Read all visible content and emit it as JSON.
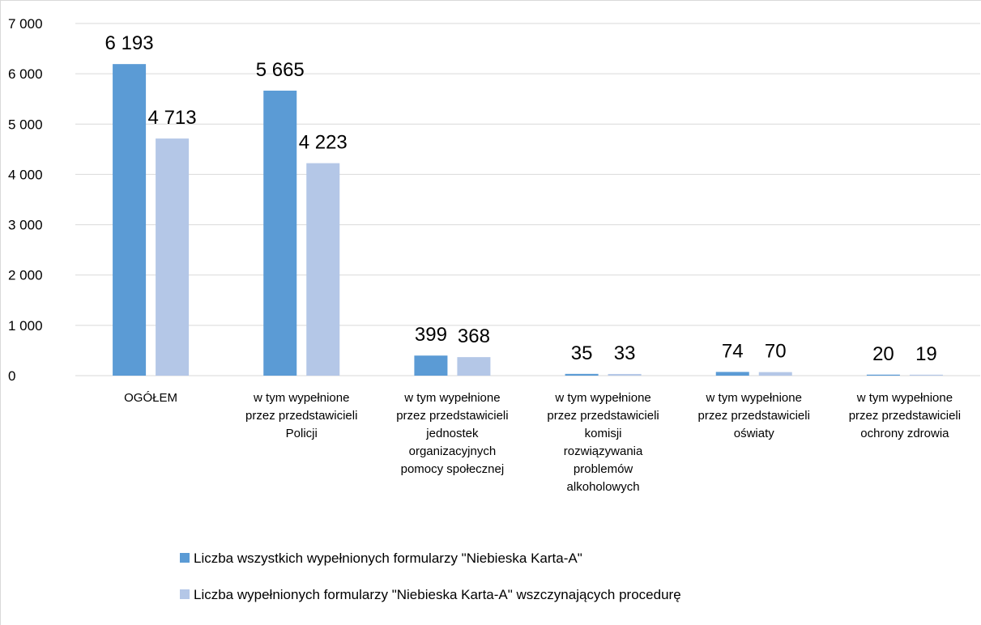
{
  "chart_data": {
    "type": "bar",
    "categories": [
      "OGÓŁEM",
      "w tym wypełnione\nprzez przedstawicieli\nPolicji",
      "w tym wypełnione\nprzez przedstawicieli\njednostek\norganizacyjnych\npomocy społecznej",
      "w tym wypełnione\nprzez przedstawicieli\nkomisji\nrozwiązywania\nproblemów\nalkoholowych",
      "w tym wypełnione\nprzez przedstawicieli\noświaty",
      "w tym wypełnione\nprzez przedstawicieli\nochrony zdrowia"
    ],
    "series": [
      {
        "name": "Liczba wszystkich wypełnionych formularzy \"Niebieska Karta-A\"",
        "color": "#5b9bd5",
        "values": [
          6193,
          5665,
          399,
          35,
          74,
          20
        ],
        "value_labels": [
          "6 193",
          "5 665",
          "399",
          "35",
          "74",
          "20"
        ]
      },
      {
        "name": "Liczba wypełnionych formularzy \"Niebieska Karta-A\" wszczynających procedurę",
        "color": "#b4c7e7",
        "values": [
          4713,
          4223,
          368,
          33,
          70,
          19
        ],
        "value_labels": [
          "4 713",
          "4 223",
          "368",
          "33",
          "70",
          "19"
        ]
      }
    ],
    "ylim": [
      0,
      7000
    ],
    "yticks": [
      0,
      {
        "value": 1000,
        "label": "1 000"
      },
      {
        "value": 2000,
        "label": "2 000"
      },
      {
        "value": 3000,
        "label": "3 000"
      },
      {
        "value": 4000,
        "label": "4 000"
      },
      {
        "value": 5000,
        "label": "5 000"
      },
      {
        "value": 6000,
        "label": "6 000"
      },
      {
        "value": 7000,
        "label": "7 000"
      }
    ],
    "grid": true,
    "legend": "bottom"
  }
}
